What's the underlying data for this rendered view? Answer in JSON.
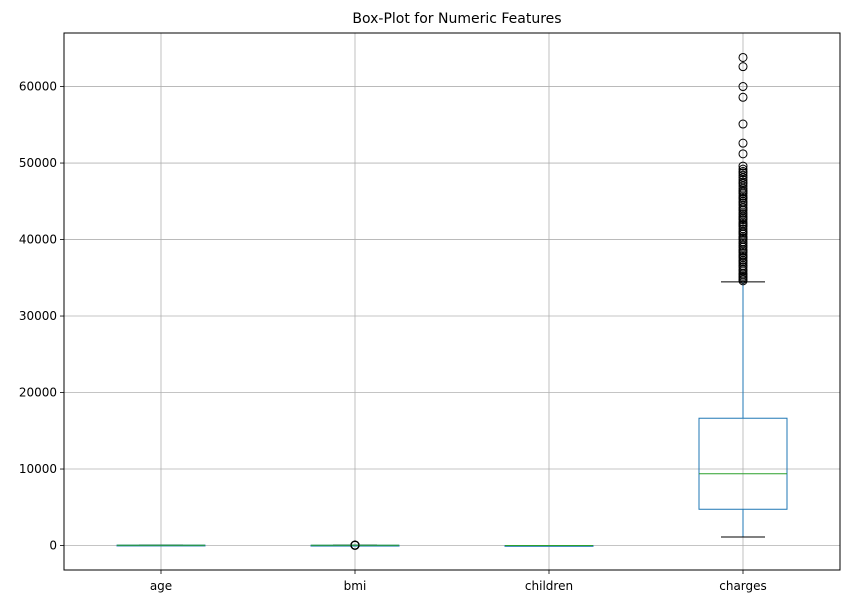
{
  "chart_data": {
    "type": "box",
    "title": "Box-Plot for Numeric Features",
    "xlabel": "",
    "ylabel": "",
    "categories": [
      "age",
      "bmi",
      "children",
      "charges"
    ],
    "ylim": [
      -3200,
      67000
    ],
    "yticks": [
      0,
      10000,
      20000,
      30000,
      40000,
      50000,
      60000
    ],
    "grid": true,
    "colors": {
      "box": "#1f77b4",
      "median": "#2ca02c",
      "whisker_cap": "#000000",
      "grid": "#b0b0b0"
    },
    "boxes": [
      {
        "name": "age",
        "whislo": 18,
        "q1": 27,
        "median": 39,
        "q3": 51,
        "whishi": 64,
        "fliers": []
      },
      {
        "name": "bmi",
        "whislo": 16,
        "q1": 26.3,
        "median": 30.4,
        "q3": 34.7,
        "whishi": 47.3,
        "fliers": [
          15.96,
          48.07,
          49.06,
          50.38,
          52.58,
          53.13
        ]
      },
      {
        "name": "children",
        "whislo": 0,
        "q1": 0,
        "median": 1,
        "q3": 2,
        "whishi": 5,
        "fliers": []
      },
      {
        "name": "charges",
        "whislo": 1122,
        "q1": 4740,
        "median": 9382,
        "q3": 16640,
        "whishi": 34470,
        "fliers": [
          34600,
          34800,
          35000,
          35200,
          35400,
          35600,
          35900,
          36100,
          36400,
          36600,
          36900,
          37100,
          37300,
          37600,
          37800,
          38000,
          38300,
          38500,
          38700,
          39000,
          39200,
          39500,
          39700,
          40000,
          40200,
          40400,
          40700,
          40900,
          41100,
          41400,
          41700,
          41900,
          42100,
          42300,
          42600,
          42800,
          43000,
          43300,
          43500,
          43800,
          44000,
          44200,
          44500,
          44800,
          45000,
          45300,
          45500,
          45700,
          46000,
          46200,
          46400,
          46700,
          47000,
          47300,
          47500,
          47800,
          48100,
          48400,
          48700,
          48900,
          49200,
          49600,
          51200,
          52600,
          55100,
          58600,
          60000,
          62600,
          63800
        ]
      }
    ]
  }
}
